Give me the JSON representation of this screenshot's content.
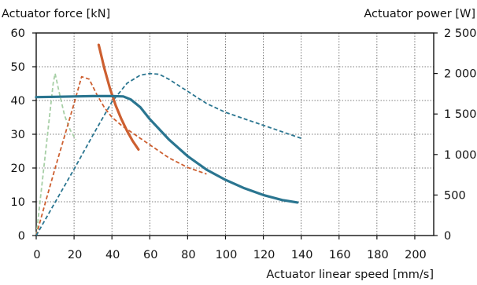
{
  "chart_data": {
    "type": "line",
    "title": "",
    "xlabel": "Actuator linear speed [mm/s]",
    "ylabel_left": "Actuator force [kN]",
    "ylabel_right": "Actuator power [W]",
    "xlim": [
      0,
      210
    ],
    "ylim_left": [
      0,
      60
    ],
    "ylim_right": [
      0,
      2500
    ],
    "x_ticks": [
      "0",
      "20",
      "40",
      "60",
      "80",
      "100",
      "120",
      "140",
      "160",
      "180",
      "200"
    ],
    "y_left_ticks": [
      "0",
      "10",
      "20",
      "30",
      "40",
      "50",
      "60"
    ],
    "y_right_ticks": [
      "0",
      "500",
      "1 000",
      "1 500",
      "2 000",
      "2 500"
    ],
    "grid": true,
    "series": [
      {
        "axis": "left",
        "style": "solid",
        "color": "#2a7590",
        "x": [
          0,
          10,
          20,
          30,
          40,
          46,
          50,
          55,
          60,
          70,
          80,
          90,
          100,
          110,
          120,
          130,
          138
        ],
        "y": [
          41,
          41.1,
          41.2,
          41.3,
          41.3,
          41.2,
          40.3,
          38,
          34.5,
          28.5,
          23.5,
          19.5,
          16.5,
          14,
          12,
          10.5,
          9.8
        ]
      },
      {
        "axis": "right",
        "style": "dashed",
        "color": "#2a7590",
        "x": [
          0,
          10,
          20,
          30,
          40,
          48,
          55,
          60,
          65,
          70,
          80,
          90,
          100,
          110,
          120,
          130,
          140
        ],
        "y": [
          0,
          410,
          820,
          1240,
          1650,
          1880,
          1980,
          2000,
          1990,
          1930,
          1780,
          1630,
          1520,
          1440,
          1360,
          1280,
          1200
        ]
      },
      {
        "axis": "left",
        "style": "solid",
        "color": "#cd5f30",
        "x": [
          33,
          36,
          39,
          42,
          45,
          48,
          51,
          54
        ],
        "y": [
          56.5,
          49.5,
          43.5,
          38.5,
          34.5,
          31,
          28,
          25.5
        ]
      },
      {
        "axis": "right",
        "style": "dashed",
        "color": "#cd5f30",
        "x": [
          0,
          5,
          10,
          15,
          20,
          24,
          28,
          32,
          36,
          40,
          45,
          50,
          55,
          60,
          70,
          80,
          90
        ],
        "y": [
          0,
          420,
          830,
          1230,
          1630,
          1960,
          1930,
          1740,
          1580,
          1460,
          1360,
          1280,
          1200,
          1120,
          960,
          840,
          760
        ]
      },
      {
        "axis": "right",
        "style": "dashed",
        "color": "#a7cfa6",
        "x": [
          0,
          3,
          6,
          9,
          10,
          12,
          15,
          18,
          21
        ],
        "y": [
          0,
          620,
          1250,
          1880,
          2000,
          1780,
          1480,
          1300,
          1180
        ]
      }
    ]
  }
}
